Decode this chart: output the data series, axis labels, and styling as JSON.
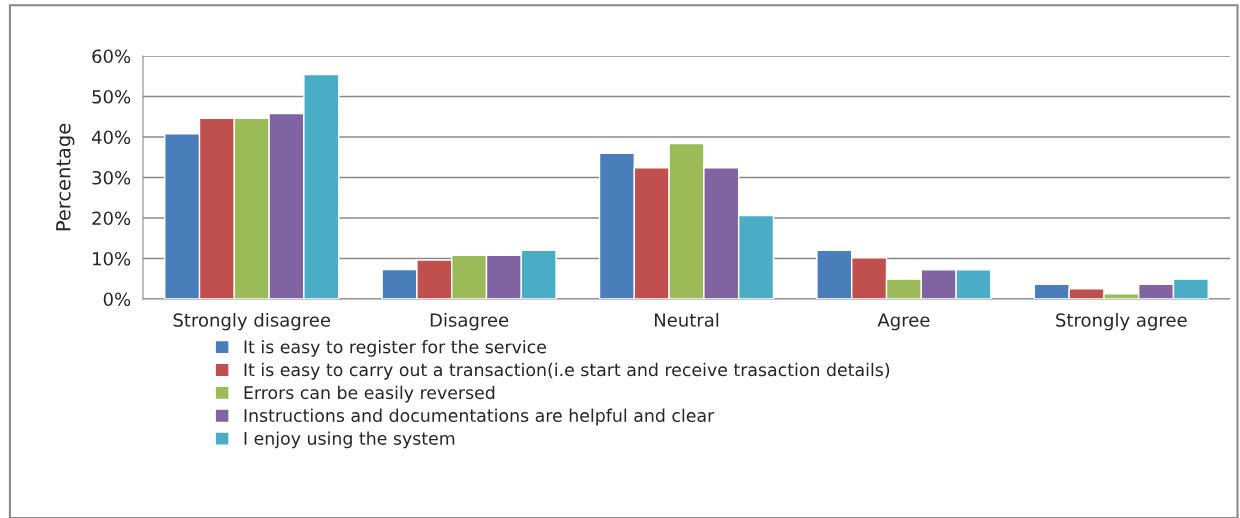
{
  "chart_data": {
    "type": "bar",
    "ylabel": "Percentage",
    "categories": [
      "Strongly disagree",
      "Disagree",
      "Neutral",
      "Agree",
      "Strongly agree"
    ],
    "series": [
      {
        "name": "It is easy to register for the service",
        "color": "#4a7ebb",
        "values": [
          40.8,
          7.3,
          36.0,
          12.0,
          3.6
        ]
      },
      {
        "name": "It is easy to carry out a transaction(i.e start and receive trasaction details)",
        "color": "#c0504d",
        "values": [
          44.6,
          9.6,
          32.4,
          10.2,
          2.5
        ]
      },
      {
        "name": "Errors can be easily reversed",
        "color": "#9bbb59",
        "values": [
          44.6,
          10.8,
          38.4,
          4.9,
          1.3
        ]
      },
      {
        "name": "Instructions and documentations are helpful and clear",
        "color": "#8064a2",
        "values": [
          45.8,
          10.8,
          32.4,
          7.2,
          3.6
        ]
      },
      {
        "name": "I enjoy using the system",
        "color": "#4bacc6",
        "values": [
          55.4,
          12.0,
          20.6,
          7.2,
          4.9
        ]
      }
    ],
    "ylim": [
      0,
      60
    ],
    "yticks": [
      {
        "value": 0,
        "label": "0%"
      },
      {
        "value": 10,
        "label": "10%"
      },
      {
        "value": 20,
        "label": "20%"
      },
      {
        "value": 30,
        "label": "30%"
      },
      {
        "value": 40,
        "label": "40%"
      },
      {
        "value": 50,
        "label": "50%"
      },
      {
        "value": 60,
        "label": "60%"
      }
    ],
    "grid": "y",
    "legend": "bottom"
  }
}
